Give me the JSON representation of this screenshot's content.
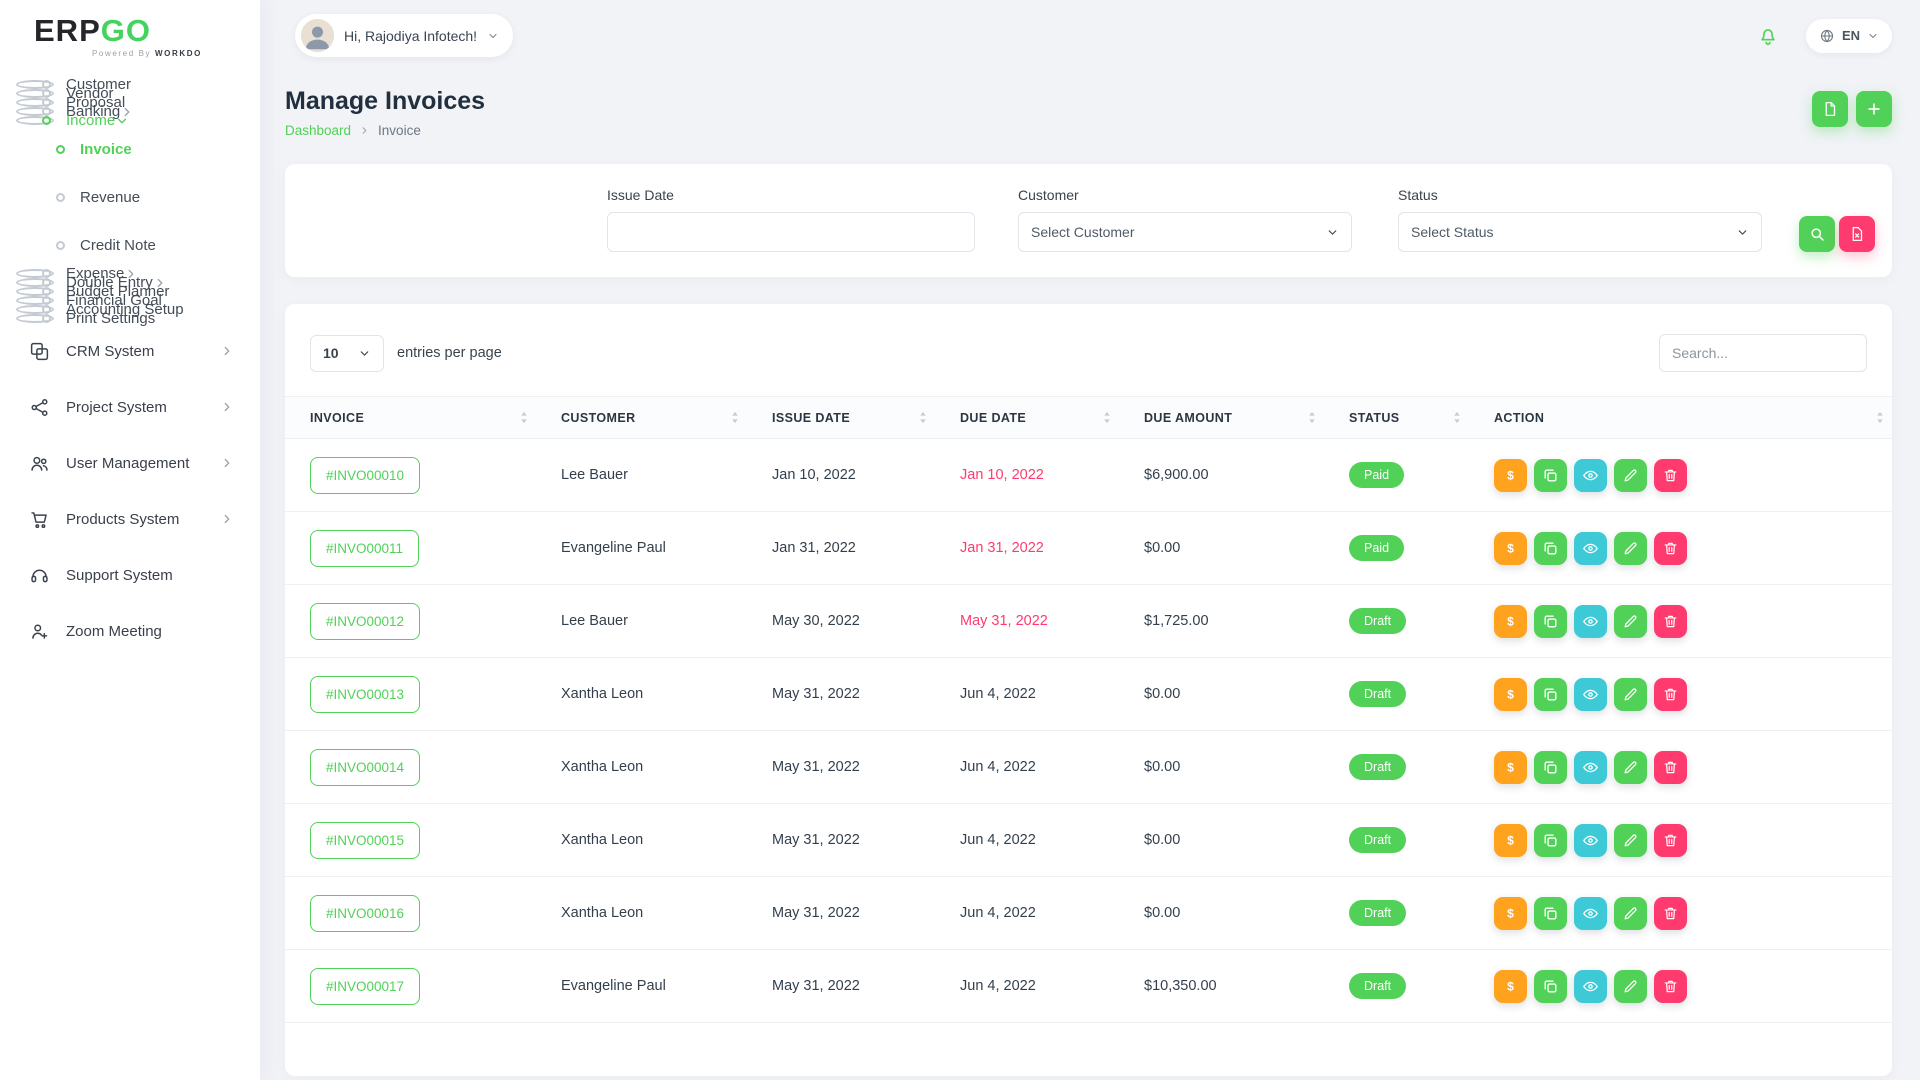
{
  "brand": {
    "erp": "ERP",
    "go": "GO",
    "powered_by": "Powered By",
    "workdo": "WORKDO"
  },
  "header": {
    "greeting": "Hi, Rajodiya Infotech!",
    "language": "EN"
  },
  "page": {
    "title": "Manage Invoices",
    "breadcrumb_root": "Dashboard",
    "breadcrumb_current": "Invoice"
  },
  "colors": {
    "primary": "#51d157",
    "danger": "#ff3a6e",
    "warning": "#ffa21d",
    "info": "#3ec9d6"
  },
  "sidebar": {
    "items": [
      {
        "label": "Customer",
        "kind": "dot"
      },
      {
        "label": "Vendor",
        "kind": "dot"
      },
      {
        "label": "Proposal",
        "kind": "dot"
      },
      {
        "label": "Banking",
        "kind": "dot",
        "chevron": "right"
      },
      {
        "label": "Income",
        "kind": "dot",
        "chevron": "down",
        "active": true
      },
      {
        "label": "Invoice",
        "kind": "sub",
        "active": true
      },
      {
        "label": "Revenue",
        "kind": "sub"
      },
      {
        "label": "Credit Note",
        "kind": "sub"
      },
      {
        "label": "Expense",
        "kind": "dot",
        "chevron": "right"
      },
      {
        "label": "Double Entry",
        "kind": "dot",
        "chevron": "right"
      },
      {
        "label": "Budget Planner",
        "kind": "dot"
      },
      {
        "label": "Financial Goal",
        "kind": "dot"
      },
      {
        "label": "Accounting Setup",
        "kind": "dot"
      },
      {
        "label": "Print Settings",
        "kind": "dot"
      },
      {
        "label": "CRM System",
        "kind": "module",
        "icon": "crm-icon",
        "chevron": "right"
      },
      {
        "label": "Project System",
        "kind": "module",
        "icon": "project-icon",
        "chevron": "right"
      },
      {
        "label": "User Management",
        "kind": "module",
        "icon": "users-icon",
        "chevron": "right"
      },
      {
        "label": "Products System",
        "kind": "module",
        "icon": "cart-icon",
        "chevron": "right"
      },
      {
        "label": "Support System",
        "kind": "module",
        "icon": "support-icon"
      },
      {
        "label": "Zoom Meeting",
        "kind": "module",
        "icon": "zoom-icon"
      }
    ]
  },
  "filters": {
    "issue_date_label": "Issue Date",
    "issue_date_value": "",
    "customer_label": "Customer",
    "customer_value": "Select Customer",
    "status_label": "Status",
    "status_value": "Select Status"
  },
  "table": {
    "entries_value": "10",
    "entries_label": "entries per page",
    "search_placeholder": "Search...",
    "columns": [
      "INVOICE",
      "CUSTOMER",
      "ISSUE DATE",
      "DUE DATE",
      "DUE AMOUNT",
      "STATUS",
      "ACTION"
    ],
    "actions": [
      {
        "name": "payment-button",
        "icon": "dollar-icon",
        "color": "#ffa21d"
      },
      {
        "name": "duplicate-button",
        "icon": "copy-icon",
        "color": "#51d157"
      },
      {
        "name": "view-button",
        "icon": "eye-icon",
        "color": "#3ec9d6"
      },
      {
        "name": "edit-button",
        "icon": "pencil-icon",
        "color": "#51d157"
      },
      {
        "name": "delete-button",
        "icon": "trash-icon",
        "color": "#ff3a6e"
      }
    ],
    "rows": [
      {
        "invoice": "#INVO00010",
        "customer": "Lee Bauer",
        "issue_date": "Jan 10, 2022",
        "due_date": "Jan 10, 2022",
        "due_overdue": true,
        "due_amount": "$6,900.00",
        "status": "Paid"
      },
      {
        "invoice": "#INVO00011",
        "customer": "Evangeline Paul",
        "issue_date": "Jan 31, 2022",
        "due_date": "Jan 31, 2022",
        "due_overdue": true,
        "due_amount": "$0.00",
        "status": "Paid"
      },
      {
        "invoice": "#INVO00012",
        "customer": "Lee Bauer",
        "issue_date": "May 30, 2022",
        "due_date": "May 31, 2022",
        "due_overdue": true,
        "due_amount": "$1,725.00",
        "status": "Draft"
      },
      {
        "invoice": "#INVO00013",
        "customer": "Xantha Leon",
        "issue_date": "May 31, 2022",
        "due_date": "Jun 4, 2022",
        "due_overdue": false,
        "due_amount": "$0.00",
        "status": "Draft"
      },
      {
        "invoice": "#INVO00014",
        "customer": "Xantha Leon",
        "issue_date": "May 31, 2022",
        "due_date": "Jun 4, 2022",
        "due_overdue": false,
        "due_amount": "$0.00",
        "status": "Draft"
      },
      {
        "invoice": "#INVO00015",
        "customer": "Xantha Leon",
        "issue_date": "May 31, 2022",
        "due_date": "Jun 4, 2022",
        "due_overdue": false,
        "due_amount": "$0.00",
        "status": "Draft"
      },
      {
        "invoice": "#INVO00016",
        "customer": "Xantha Leon",
        "issue_date": "May 31, 2022",
        "due_date": "Jun 4, 2022",
        "due_overdue": false,
        "due_amount": "$0.00",
        "status": "Draft"
      },
      {
        "invoice": "#INVO00017",
        "customer": "Evangeline Paul",
        "issue_date": "May 31, 2022",
        "due_date": "Jun 4, 2022",
        "due_overdue": false,
        "due_amount": "$10,350.00",
        "status": "Draft"
      }
    ]
  }
}
